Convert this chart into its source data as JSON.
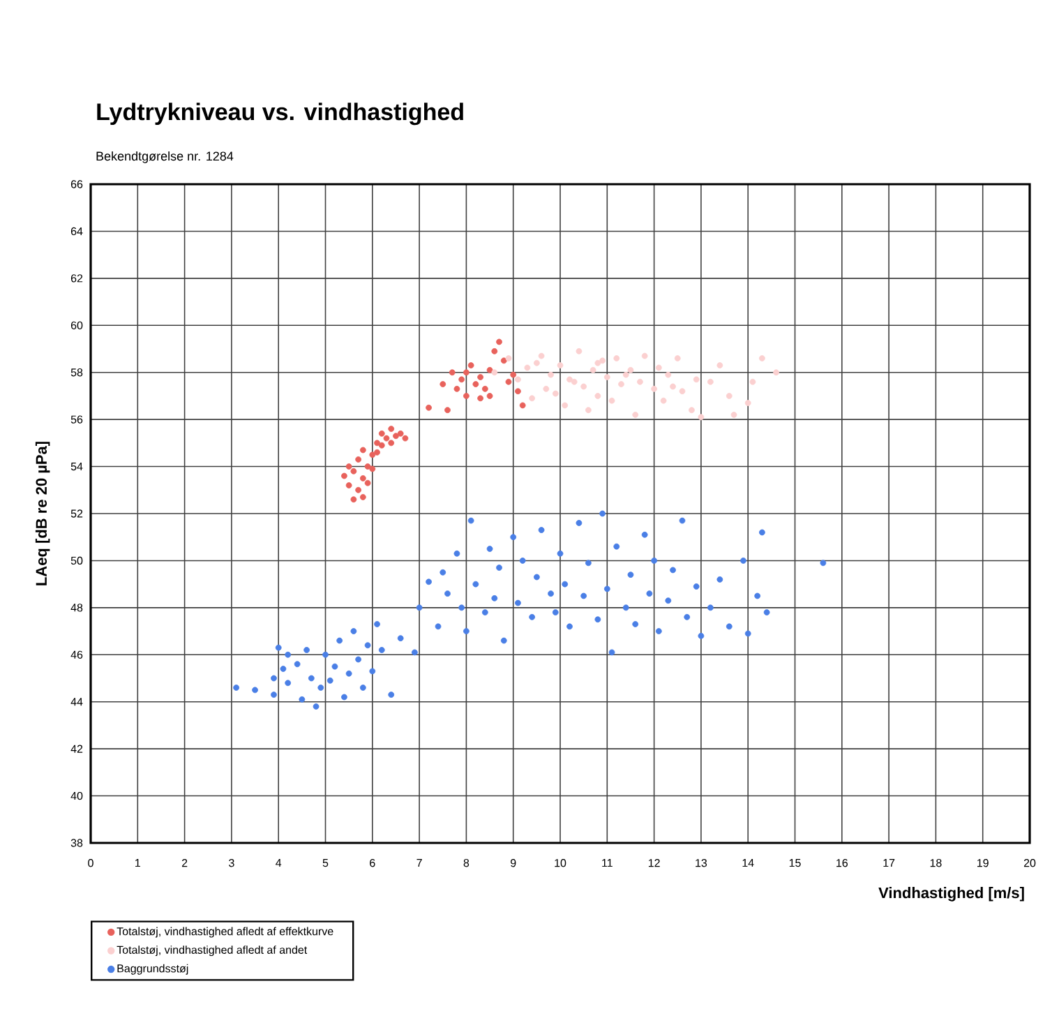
{
  "chart_data": {
    "type": "scatter",
    "title": "Lydtrykniveau vs. vindhastighed",
    "subtitle": "Bekendtgørelse nr. 1284",
    "xlabel": "Vindhastighed [m/s]",
    "ylabel": "LAeq [dB re 20 µPa]",
    "xlim": [
      0,
      20
    ],
    "ylim": [
      38,
      66
    ],
    "xticks": [
      0,
      1,
      2,
      3,
      4,
      5,
      6,
      7,
      8,
      9,
      10,
      11,
      12,
      13,
      14,
      15,
      16,
      17,
      18,
      19,
      20
    ],
    "yticks": [
      38,
      40,
      42,
      44,
      46,
      48,
      50,
      52,
      54,
      56,
      58,
      60,
      62,
      64,
      66
    ],
    "grid": true,
    "legend": "bottom",
    "marker": "circle",
    "series": [
      {
        "name": "Totalstøj, vindhastighed afledt af effektkurve",
        "color": "#e8625c",
        "x": [
          5.4,
          5.5,
          5.5,
          5.6,
          5.6,
          5.7,
          5.7,
          5.8,
          5.8,
          5.9,
          5.9,
          6.0,
          6.0,
          6.1,
          6.1,
          6.2,
          6.2,
          6.3,
          6.4,
          6.4,
          6.5,
          6.6,
          6.7,
          5.8,
          7.2,
          7.5,
          7.6,
          7.8,
          7.9,
          8.0,
          8.0,
          8.1,
          8.2,
          8.3,
          8.4,
          8.5,
          8.6,
          8.7,
          8.8,
          8.9,
          9.0,
          9.1,
          9.2,
          8.3,
          7.7,
          8.5
        ],
        "values": [
          53.6,
          53.2,
          54.0,
          53.8,
          52.6,
          53.0,
          54.3,
          53.5,
          54.7,
          54.0,
          53.3,
          54.5,
          53.9,
          55.0,
          54.6,
          55.4,
          54.9,
          55.2,
          55.6,
          55.0,
          55.3,
          55.4,
          55.2,
          52.7,
          56.5,
          57.5,
          56.4,
          57.3,
          57.7,
          58.0,
          57.0,
          58.3,
          57.5,
          57.8,
          57.3,
          58.1,
          58.9,
          59.3,
          58.5,
          57.6,
          57.9,
          57.2,
          56.6,
          56.9,
          58.0,
          57.0
        ]
      },
      {
        "name": "Totalstøj, vindhastighed afledt af andet",
        "color": "#fbd0d0",
        "x": [
          8.6,
          8.9,
          9.1,
          9.3,
          9.4,
          9.6,
          9.7,
          9.8,
          10.0,
          10.1,
          10.2,
          10.4,
          10.5,
          10.6,
          10.7,
          10.8,
          10.9,
          11.0,
          11.1,
          11.2,
          11.3,
          11.5,
          11.6,
          11.7,
          11.8,
          12.0,
          12.1,
          12.2,
          12.3,
          12.5,
          12.6,
          12.8,
          12.9,
          13.0,
          13.2,
          13.4,
          13.6,
          13.7,
          14.0,
          14.1,
          14.3,
          14.6,
          9.5,
          10.3,
          11.4,
          12.4,
          9.9,
          10.8
        ],
        "values": [
          58.0,
          58.6,
          57.7,
          58.2,
          56.9,
          58.7,
          57.3,
          57.9,
          58.3,
          56.6,
          57.7,
          58.9,
          57.4,
          56.4,
          58.1,
          57.0,
          58.5,
          57.8,
          56.8,
          58.6,
          57.5,
          58.1,
          56.2,
          57.6,
          58.7,
          57.3,
          58.2,
          56.8,
          57.9,
          58.6,
          57.2,
          56.4,
          57.7,
          56.1,
          57.6,
          58.3,
          57.0,
          56.2,
          56.7,
          57.6,
          58.6,
          58.0,
          58.4,
          57.6,
          57.9,
          57.4,
          57.1,
          58.4
        ]
      },
      {
        "name": "Baggrundsstøj",
        "color": "#4a7fe6",
        "x": [
          3.1,
          3.5,
          3.9,
          3.9,
          4.0,
          4.1,
          4.2,
          4.2,
          4.4,
          4.5,
          4.6,
          4.7,
          4.8,
          4.9,
          5.0,
          5.1,
          5.2,
          5.3,
          5.4,
          5.5,
          5.6,
          5.7,
          5.8,
          5.9,
          6.0,
          6.1,
          6.2,
          6.4,
          6.6,
          6.9,
          7.0,
          7.2,
          7.4,
          7.5,
          7.6,
          7.8,
          7.9,
          8.0,
          8.1,
          8.2,
          8.4,
          8.5,
          8.6,
          8.7,
          8.8,
          9.0,
          9.1,
          9.2,
          9.4,
          9.5,
          9.6,
          9.8,
          9.9,
          10.0,
          10.1,
          10.2,
          10.4,
          10.5,
          10.6,
          10.8,
          10.9,
          11.0,
          11.1,
          11.2,
          11.4,
          11.5,
          11.6,
          11.8,
          11.9,
          12.0,
          12.1,
          12.3,
          12.4,
          12.6,
          12.7,
          12.9,
          13.0,
          13.2,
          13.4,
          13.6,
          13.9,
          14.0,
          14.2,
          14.3,
          14.4,
          15.6
        ],
        "values": [
          44.6,
          44.5,
          44.3,
          45.0,
          46.3,
          45.4,
          44.8,
          46.0,
          45.6,
          44.1,
          46.2,
          45.0,
          43.8,
          44.6,
          46.0,
          44.9,
          45.5,
          46.6,
          44.2,
          45.2,
          47.0,
          45.8,
          44.6,
          46.4,
          45.3,
          47.3,
          46.2,
          44.3,
          46.7,
          46.1,
          48.0,
          49.1,
          47.2,
          49.5,
          48.6,
          50.3,
          48.0,
          47.0,
          51.7,
          49.0,
          47.8,
          50.5,
          48.4,
          49.7,
          46.6,
          51.0,
          48.2,
          50.0,
          47.6,
          49.3,
          51.3,
          48.6,
          47.8,
          50.3,
          49.0,
          47.2,
          51.6,
          48.5,
          49.9,
          47.5,
          52.0,
          48.8,
          46.1,
          50.6,
          48.0,
          49.4,
          47.3,
          51.1,
          48.6,
          50.0,
          47.0,
          48.3,
          49.6,
          51.7,
          47.6,
          48.9,
          46.8,
          48.0,
          49.2,
          47.2,
          50.0,
          46.9,
          48.5,
          51.2,
          47.8,
          49.9
        ]
      }
    ]
  }
}
